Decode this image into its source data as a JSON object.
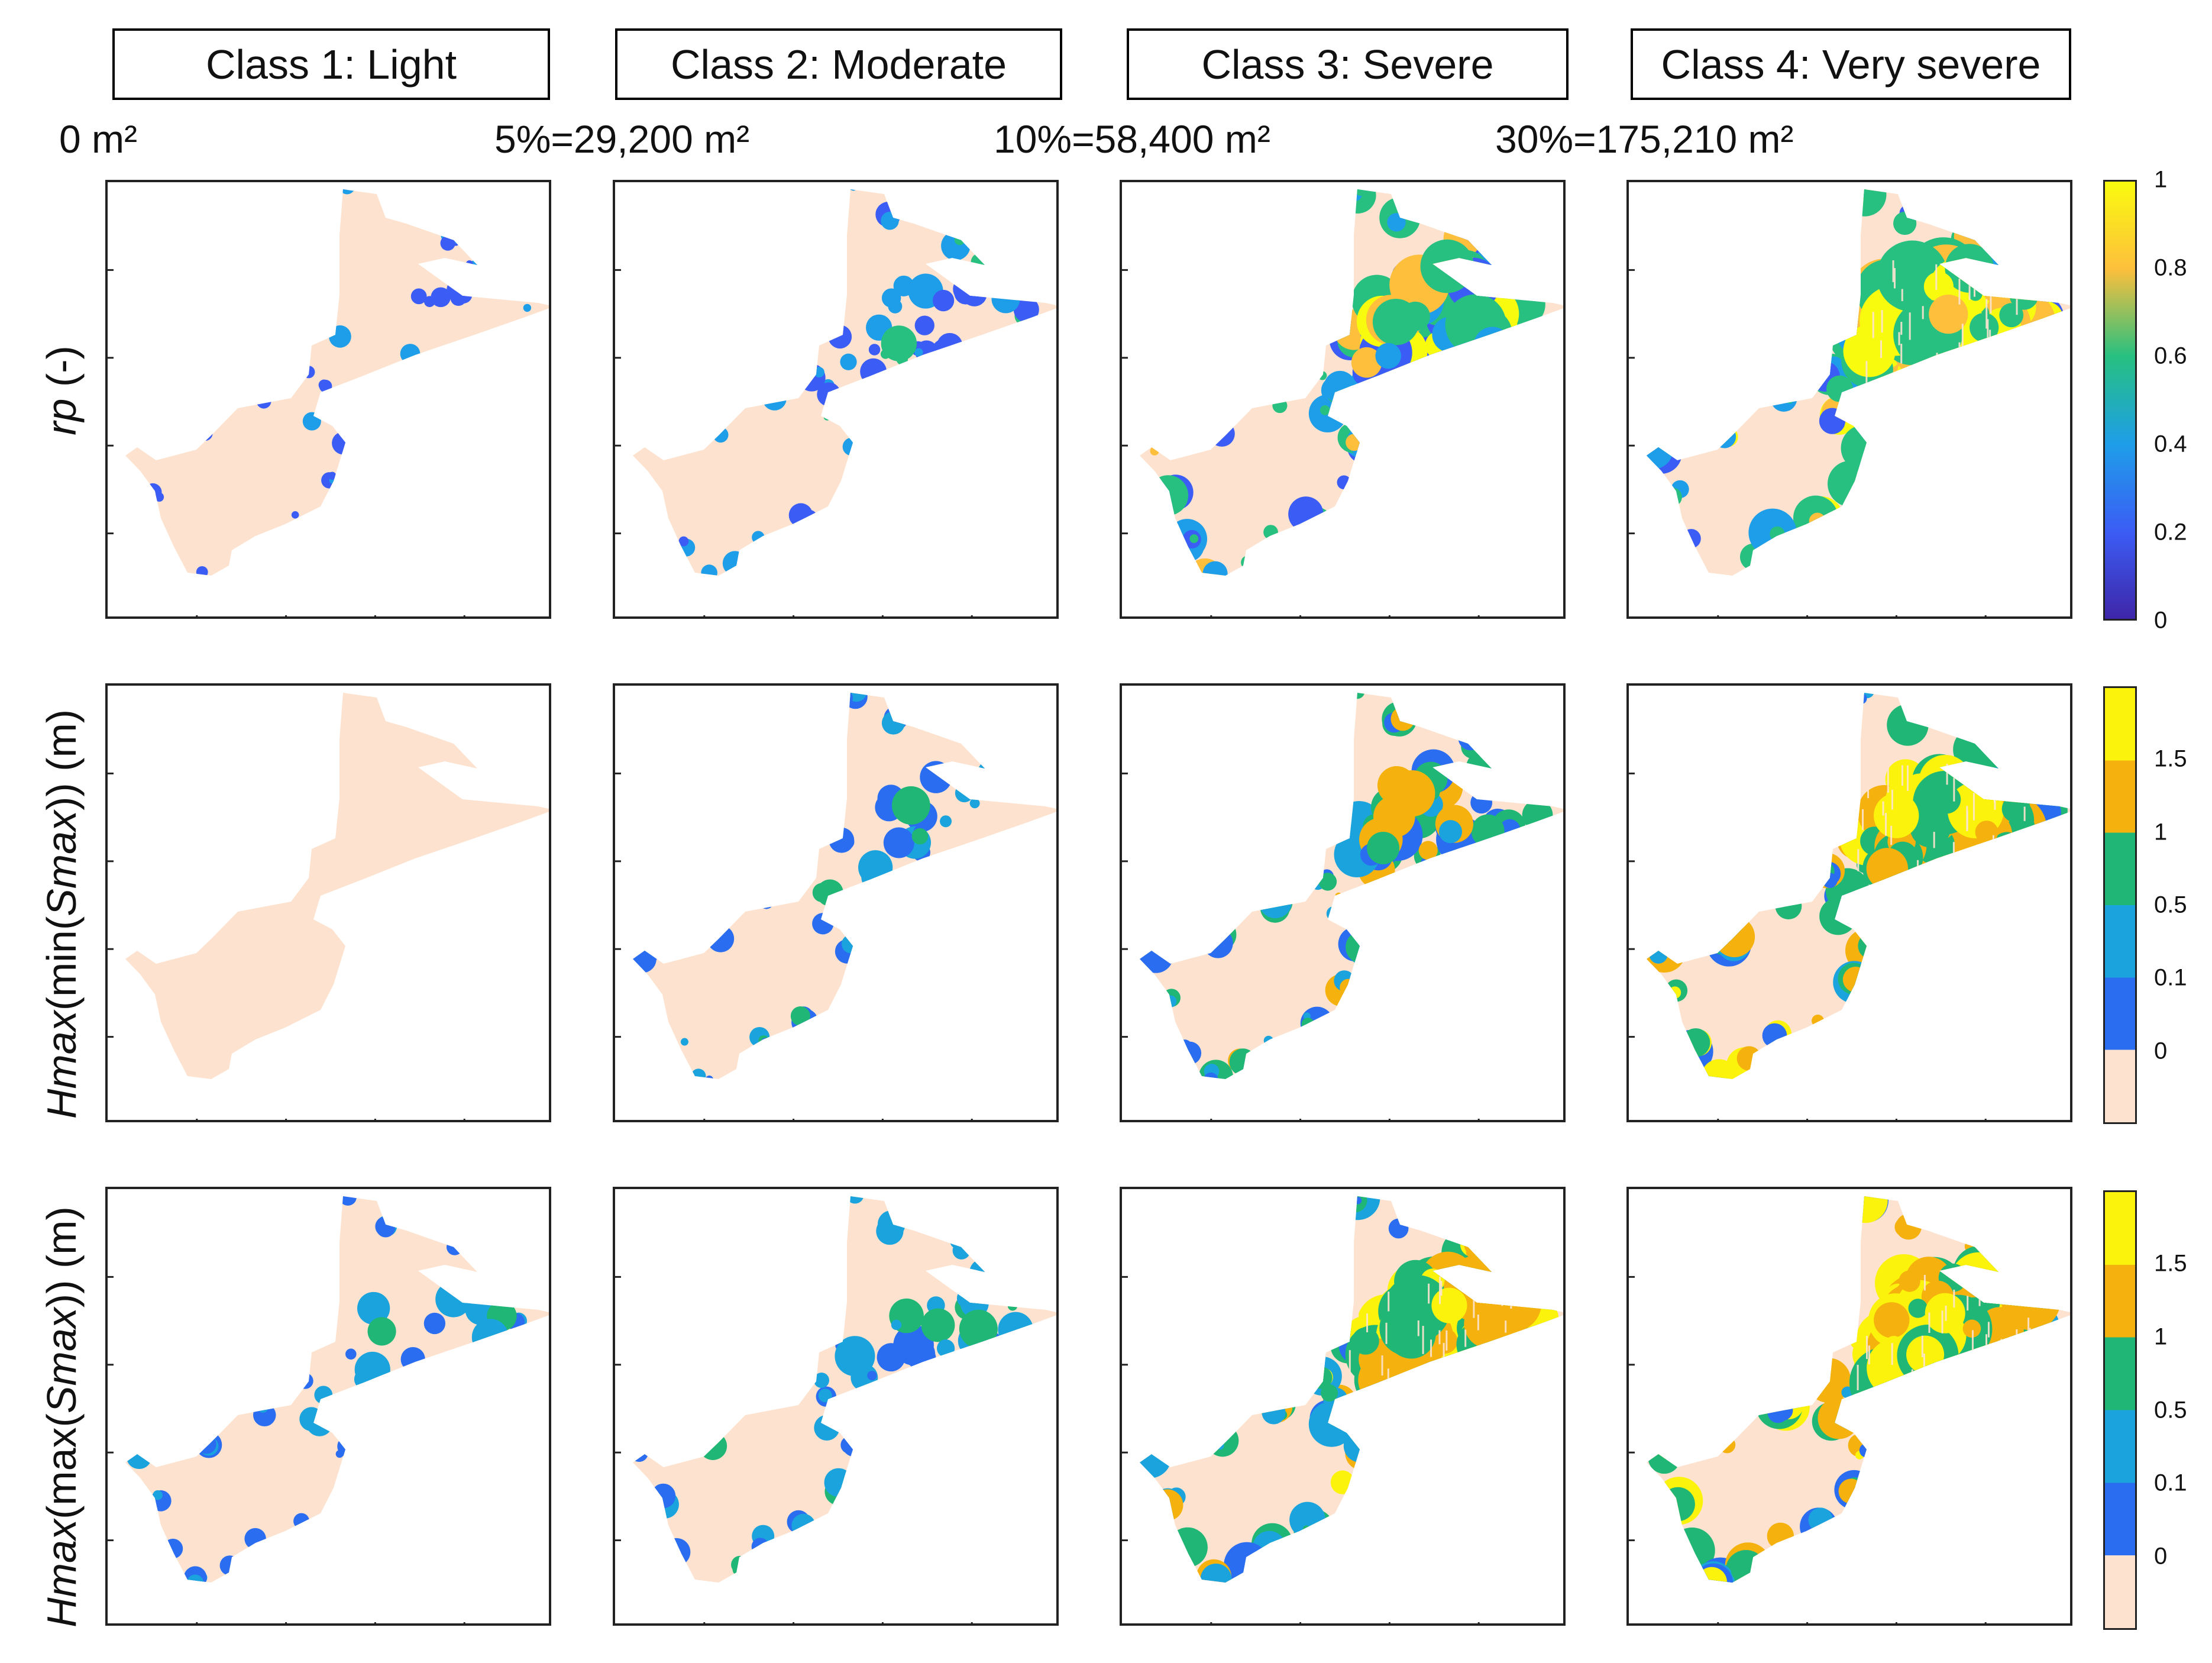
{
  "column_headers": [
    "Class 1: Light",
    "Class 2: Moderate",
    "Class 3: Severe",
    "Class 4: Very severe"
  ],
  "thresholds": [
    "0 m²",
    "5%=29,200 m²",
    "10%=58,400 m²",
    "30%=175,210 m²"
  ],
  "rows": [
    {
      "label_italic": "rp",
      "label_tail": " (-)"
    },
    {
      "label_italic": "Hmax",
      "label_pre": "(min(",
      "label_italic2": "Smax",
      "label_post": ")) (m)"
    },
    {
      "label_italic": "Hmax",
      "label_pre": "(max(",
      "label_italic2": "Smax",
      "label_post": ")) (m)"
    }
  ],
  "colorbars": [
    {
      "type": "continuous",
      "ticks": [
        "1",
        "0.8",
        "0.6",
        "0.4",
        "0.2",
        "0"
      ],
      "colors": [
        "#f9fb0e",
        "#fdbf3c",
        "#27c080",
        "#1e9ee8",
        "#3b5df5",
        "#3e26a8"
      ]
    },
    {
      "type": "discrete",
      "ticks": [
        "1.5",
        "1",
        "0.5",
        "0.1",
        "0"
      ],
      "colors": [
        "#fbf30b",
        "#f5b10e",
        "#20b776",
        "#1aa3dc",
        "#2a6df0",
        "#fde3cf"
      ]
    },
    {
      "type": "discrete",
      "ticks": [
        "1.5",
        "1",
        "0.5",
        "0.1",
        "0"
      ],
      "colors": [
        "#fbf30b",
        "#f5b10e",
        "#20b776",
        "#1aa3dc",
        "#2a6df0",
        "#fde3cf"
      ]
    }
  ],
  "land_color": "#fde3cf",
  "intensity": [
    [
      0.15,
      0.35,
      0.75,
      1.0
    ],
    [
      0.0,
      0.3,
      0.55,
      0.85
    ],
    [
      0.25,
      0.35,
      0.9,
      1.0
    ]
  ]
}
